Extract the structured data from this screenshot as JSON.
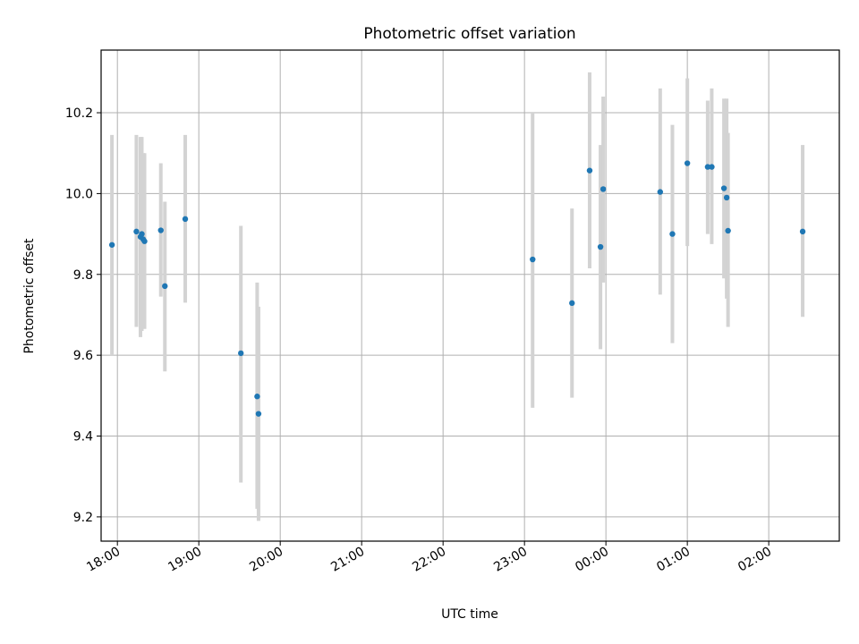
{
  "chart_data": {
    "type": "scatter",
    "title": "Photometric offset variation",
    "xlabel": "UTC time",
    "ylabel": "Photometric offset",
    "x_axis": "time (hours from 18:00 UTC, crossing midnight)",
    "xlim": [
      "17:48",
      "02:52"
    ],
    "ylim": [
      9.14,
      10.355
    ],
    "xticks": [
      {
        "t": "18:00",
        "label": "18:00"
      },
      {
        "t": "19:00",
        "label": "19:00"
      },
      {
        "t": "20:00",
        "label": "20:00"
      },
      {
        "t": "21:00",
        "label": "21:00"
      },
      {
        "t": "22:00",
        "label": "22:00"
      },
      {
        "t": "23:00",
        "label": "23:00"
      },
      {
        "t": "00:00",
        "label": "00:00"
      },
      {
        "t": "01:00",
        "label": "01:00"
      },
      {
        "t": "02:00",
        "label": "02:00"
      }
    ],
    "yticks": [
      9.2,
      9.4,
      9.6,
      9.8,
      10.0,
      10.2
    ],
    "grid": true,
    "marker_color": "#1f77b4",
    "errorbar_color": "#d3d3d3",
    "points": [
      {
        "t": "17:56",
        "y": 9.873,
        "lo": 9.6,
        "hi": 10.145
      },
      {
        "t": "18:14",
        "y": 9.906,
        "lo": 9.67,
        "hi": 10.145
      },
      {
        "t": "18:17",
        "y": 9.893,
        "lo": 9.645,
        "hi": 10.14
      },
      {
        "t": "18:18",
        "y": 9.9,
        "lo": 9.66,
        "hi": 10.14
      },
      {
        "t": "18:19",
        "y": 9.887,
        "lo": 9.67,
        "hi": 10.1
      },
      {
        "t": "18:20",
        "y": 9.882,
        "lo": 9.665,
        "hi": 10.1
      },
      {
        "t": "18:32",
        "y": 9.909,
        "lo": 9.745,
        "hi": 10.075
      },
      {
        "t": "18:35",
        "y": 9.771,
        "lo": 9.56,
        "hi": 9.98
      },
      {
        "t": "18:50",
        "y": 9.937,
        "lo": 9.73,
        "hi": 10.145
      },
      {
        "t": "19:31",
        "y": 9.605,
        "lo": 9.285,
        "hi": 9.92
      },
      {
        "t": "19:43",
        "y": 9.498,
        "lo": 9.22,
        "hi": 9.78
      },
      {
        "t": "19:44",
        "y": 9.455,
        "lo": 9.19,
        "hi": 9.72
      },
      {
        "t": "23:06",
        "y": 9.837,
        "lo": 9.47,
        "hi": 10.2
      },
      {
        "t": "23:35",
        "y": 9.729,
        "lo": 9.495,
        "hi": 9.963
      },
      {
        "t": "23:48",
        "y": 10.057,
        "lo": 9.815,
        "hi": 10.3
      },
      {
        "t": "23:56",
        "y": 9.868,
        "lo": 9.615,
        "hi": 10.12
      },
      {
        "t": "23:58",
        "y": 10.011,
        "lo": 9.78,
        "hi": 10.24
      },
      {
        "t": "00:40",
        "y": 10.004,
        "lo": 9.75,
        "hi": 10.26
      },
      {
        "t": "00:49",
        "y": 9.9,
        "lo": 9.63,
        "hi": 10.17
      },
      {
        "t": "01:00",
        "y": 10.075,
        "lo": 9.87,
        "hi": 10.285
      },
      {
        "t": "01:15",
        "y": 10.066,
        "lo": 9.9,
        "hi": 10.23
      },
      {
        "t": "01:18",
        "y": 10.066,
        "lo": 9.875,
        "hi": 10.26
      },
      {
        "t": "01:27",
        "y": 10.013,
        "lo": 9.79,
        "hi": 10.235
      },
      {
        "t": "01:29",
        "y": 9.99,
        "lo": 9.74,
        "hi": 10.235
      },
      {
        "t": "01:30",
        "y": 9.908,
        "lo": 9.67,
        "hi": 10.15
      },
      {
        "t": "02:25",
        "y": 9.906,
        "lo": 9.695,
        "hi": 10.12
      }
    ]
  }
}
